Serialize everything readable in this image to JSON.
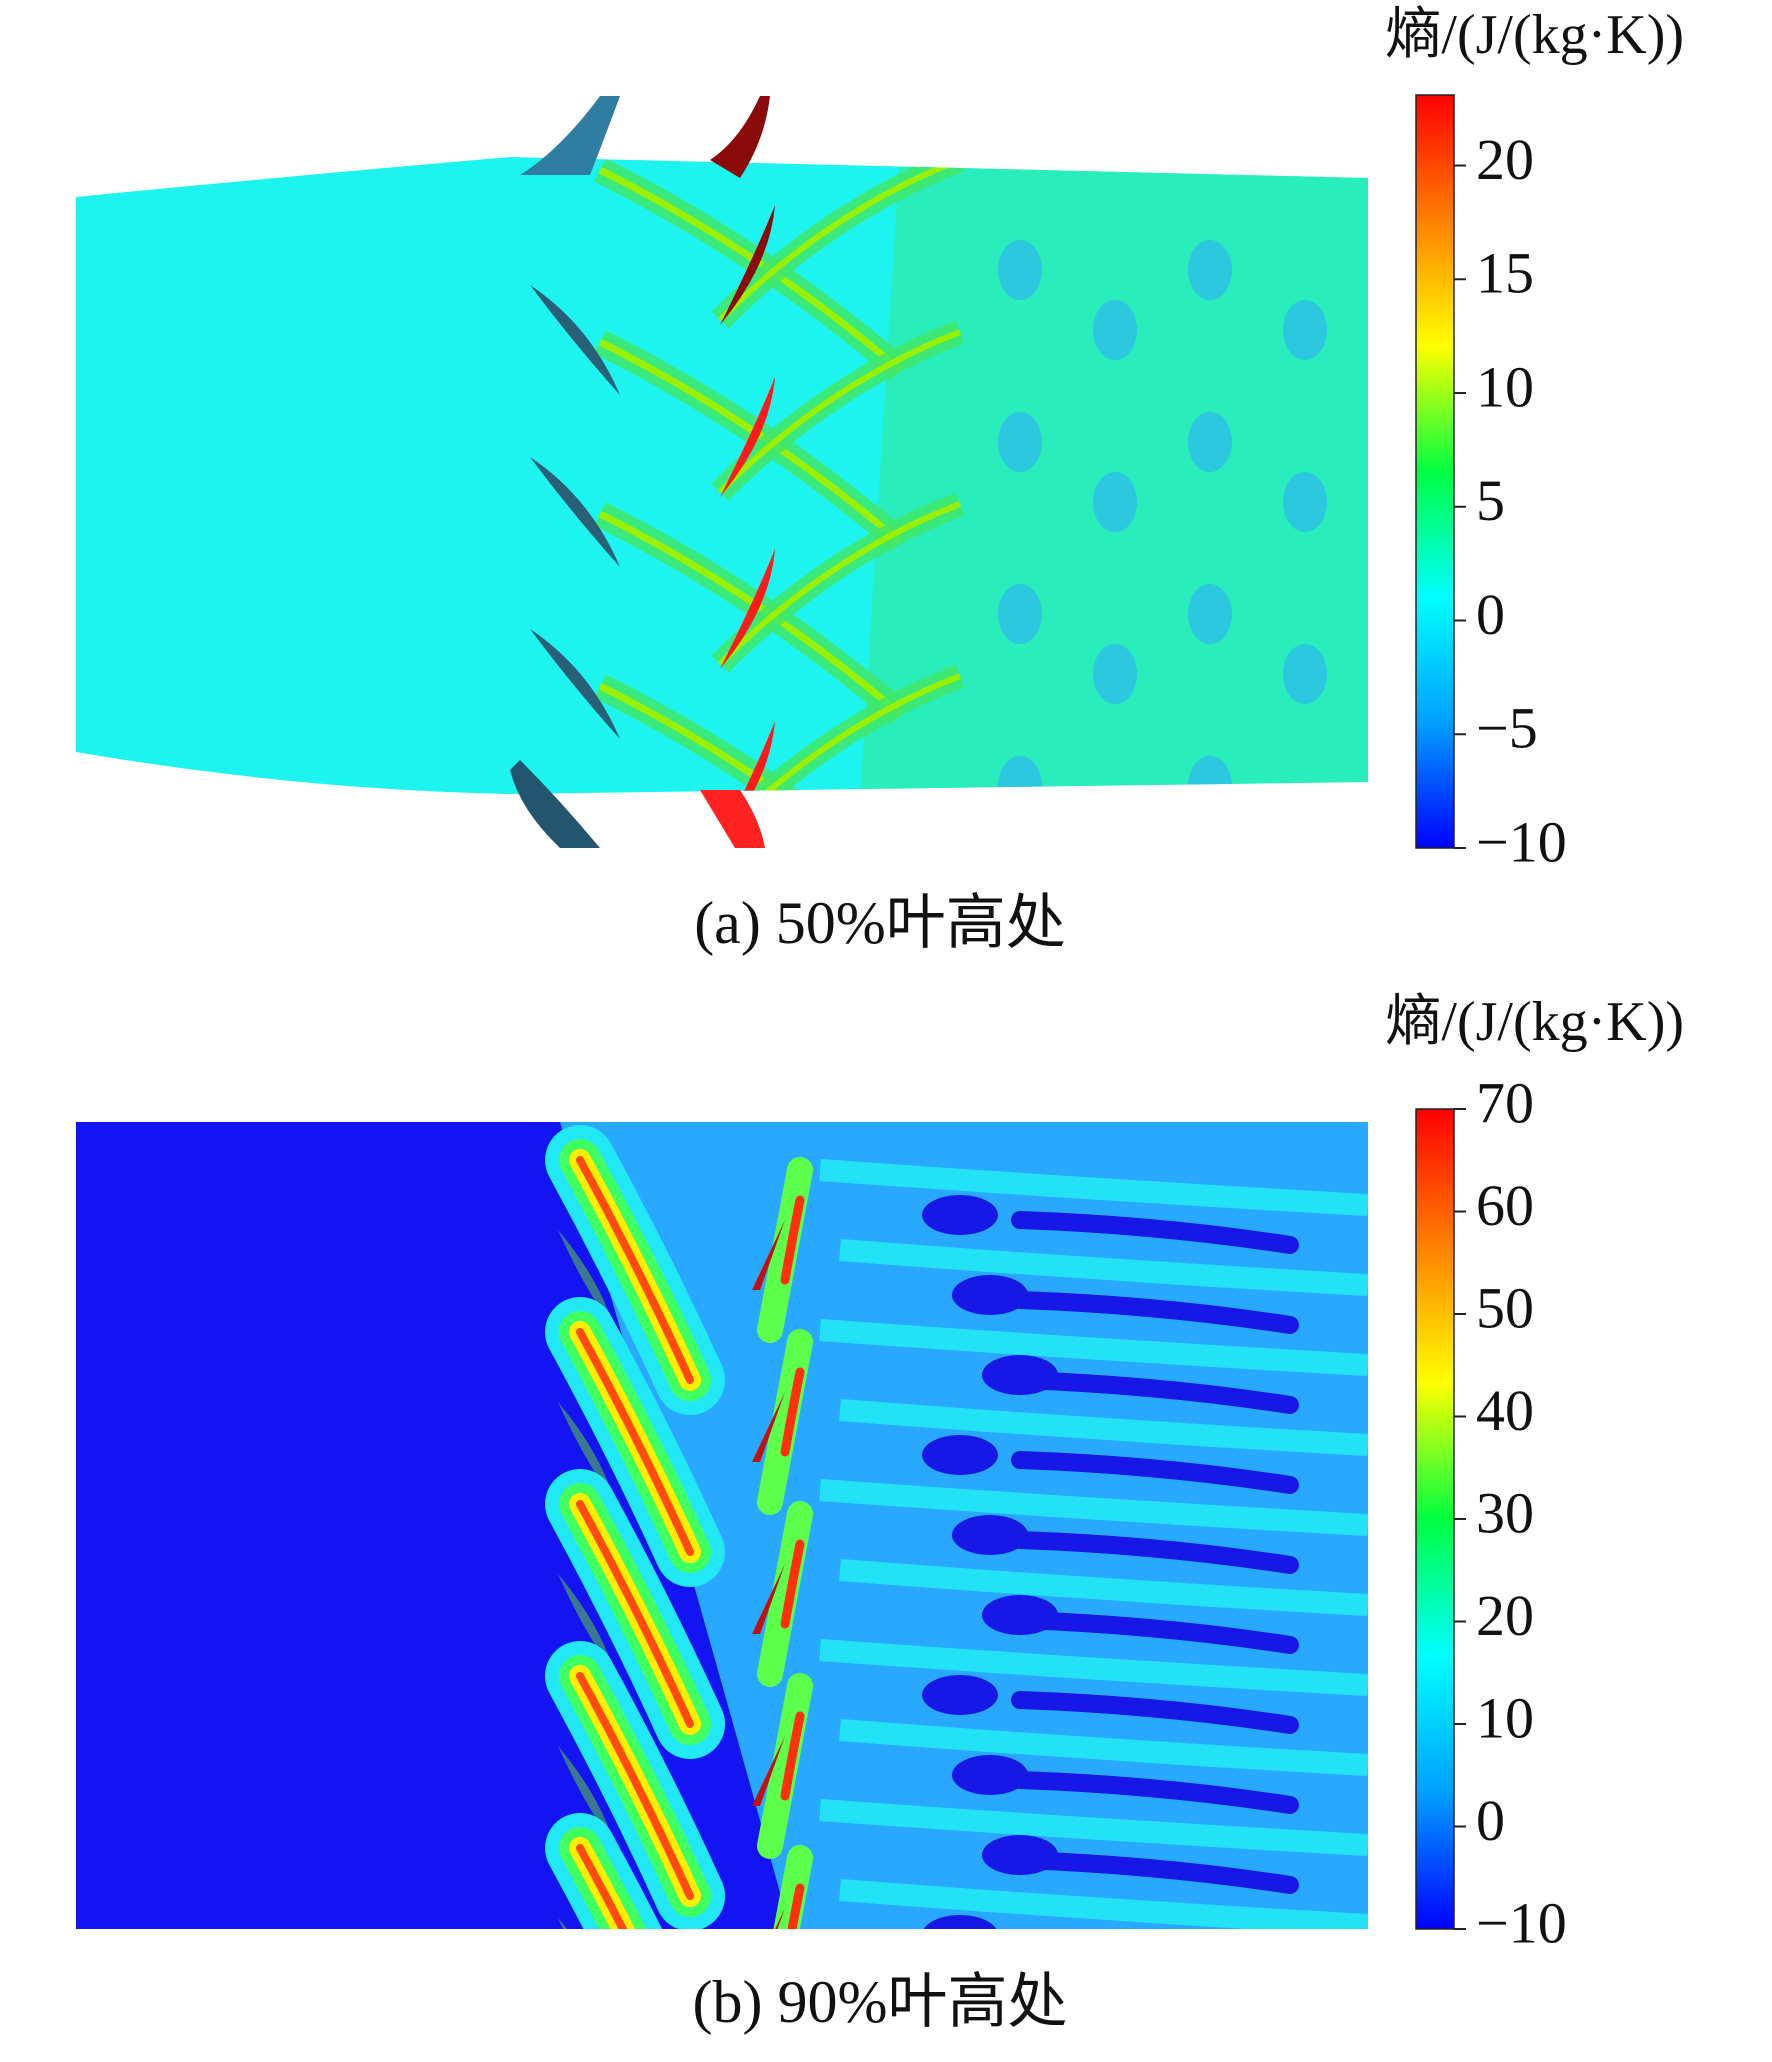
{
  "chart_data": [
    {
      "type": "contour",
      "caption": "(a) 50%叶高处",
      "colorbar_label": "熵/(J/(kg·K))",
      "colormap": [
        "#0000ff",
        "#00a0ff",
        "#00ffff",
        "#00ff40",
        "#ffff00",
        "#ff8000",
        "#ff0000"
      ],
      "field_color": "#1ef4ef",
      "ylim": [
        -10,
        23.1
      ],
      "yticks": [
        {
          "value": -10,
          "label": "−10"
        },
        {
          "value": -5,
          "label": "−5"
        },
        0,
        5,
        10,
        15,
        20
      ]
    },
    {
      "type": "contour",
      "caption": "(b) 90%叶高处",
      "colorbar_label": "熵/(J/(kg·K))",
      "colormap": [
        "#0000ff",
        "#00a0ff",
        "#00ffff",
        "#00ff40",
        "#ffff00",
        "#ff8000",
        "#ff0000"
      ],
      "field_color": "#1414f2",
      "ylim": [
        -10,
        70
      ],
      "yticks": [
        {
          "value": -10,
          "label": "−10"
        },
        0,
        10,
        20,
        30,
        40,
        50,
        60,
        70
      ]
    }
  ]
}
